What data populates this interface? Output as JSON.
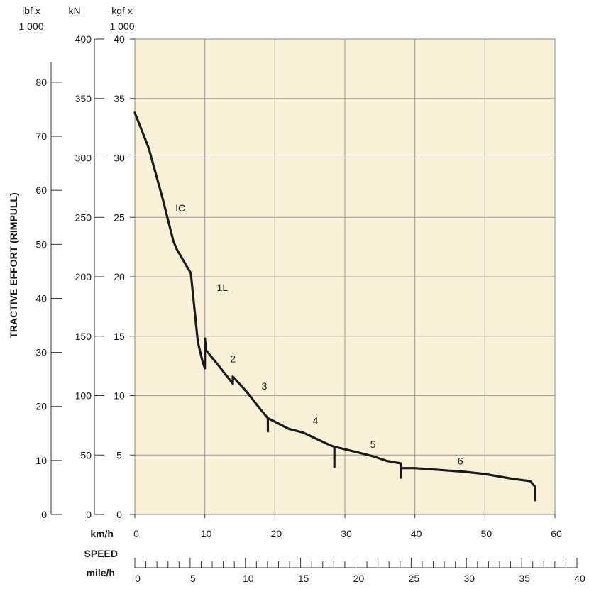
{
  "chart_data": {
    "type": "line",
    "ylabel": "TRACTIVE EFFORT (RIMPULL)",
    "y_axes": {
      "lbf": {
        "unit_line1": "lbf x",
        "unit_line2": "1 000",
        "range": [
          0,
          88
        ],
        "ticks": [
          "0",
          "10",
          "20",
          "30",
          "40",
          "50",
          "60",
          "70",
          "80"
        ]
      },
      "kN": {
        "unit": "kN",
        "range": [
          0,
          400
        ],
        "ticks": [
          "0",
          "50",
          "100",
          "150",
          "200",
          "250",
          "300",
          "350",
          "400"
        ]
      },
      "kgf": {
        "unit_line1": "kgf x",
        "unit_line2": "1 000",
        "range": [
          0,
          40
        ],
        "ticks": [
          "0",
          "5",
          "10",
          "15",
          "20",
          "25",
          "30",
          "35",
          "40"
        ]
      }
    },
    "x_axes": {
      "kmh": {
        "unit": "km/h",
        "range": [
          0,
          60
        ],
        "ticks": [
          "0",
          "10",
          "20",
          "30",
          "40",
          "50",
          "60"
        ]
      },
      "speed_label": "SPEED",
      "mph": {
        "unit": "mile/h",
        "range": [
          0,
          40
        ],
        "ticks": [
          "0",
          "5",
          "10",
          "15",
          "20",
          "25",
          "30",
          "35",
          "40"
        ]
      }
    },
    "grid": true,
    "plot_background": "#f8f1d8",
    "line_color": "#1a1a1a",
    "curve_kmh_kgf": [
      [
        0,
        33.8
      ],
      [
        2,
        30.8
      ],
      [
        4,
        26.5
      ],
      [
        5.5,
        23.0
      ],
      [
        6,
        22.3
      ],
      [
        8,
        20.3
      ],
      [
        9,
        14.5
      ],
      [
        9.7,
        12.8
      ],
      [
        10,
        12.3
      ],
      [
        10,
        14.8
      ],
      [
        10.2,
        13.8
      ],
      [
        12,
        12.5
      ],
      [
        14,
        11.0
      ],
      [
        14,
        11.6
      ],
      [
        16,
        10.3
      ],
      [
        18,
        8.8
      ],
      [
        19,
        8.1
      ],
      [
        19,
        7.0
      ],
      [
        19,
        8.1
      ],
      [
        22,
        7.2
      ],
      [
        24,
        6.9
      ],
      [
        28,
        5.8
      ],
      [
        28.5,
        5.7
      ],
      [
        28.5,
        4.0
      ],
      [
        28.5,
        5.7
      ],
      [
        32,
        5.2
      ],
      [
        34,
        4.9
      ],
      [
        36,
        4.5
      ],
      [
        38,
        4.3
      ],
      [
        38,
        3.1
      ],
      [
        38,
        3.9
      ],
      [
        40,
        3.9
      ],
      [
        47,
        3.6
      ],
      [
        50,
        3.4
      ],
      [
        54,
        3.0
      ],
      [
        56.5,
        2.8
      ],
      [
        57.2,
        2.3
      ],
      [
        57.2,
        1.2
      ]
    ],
    "annotations": [
      {
        "text": "IC",
        "x": 6.5,
        "y": 25.5
      },
      {
        "text": "1L",
        "x": 12.5,
        "y": 18.8
      },
      {
        "text": "2",
        "x": 14,
        "y": 12.8
      },
      {
        "text": "3",
        "x": 18.5,
        "y": 10.5
      },
      {
        "text": "4",
        "x": 25.8,
        "y": 7.6
      },
      {
        "text": "5",
        "x": 34,
        "y": 5.6
      },
      {
        "text": "6",
        "x": 46.5,
        "y": 4.2
      }
    ]
  }
}
